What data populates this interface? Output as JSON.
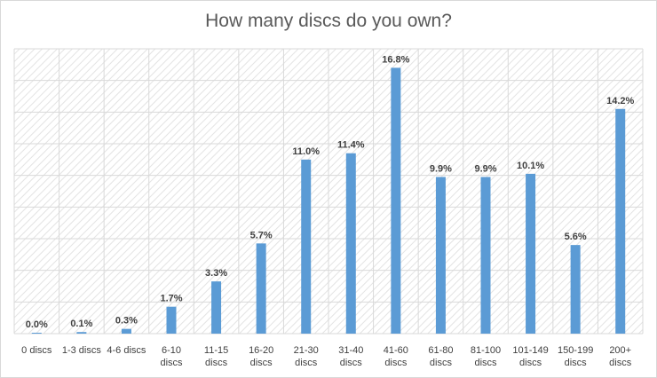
{
  "chart_data": {
    "type": "bar",
    "title": "How many discs do you own?",
    "categories": [
      "0 discs",
      "1-3 discs",
      "4-6 discs",
      "6-10 discs",
      "11-15 discs",
      "16-20 discs",
      "21-30 discs",
      "31-40 discs",
      "41-60 discs",
      "61-80 discs",
      "81-100 discs",
      "101-149 discs",
      "150-199 discs",
      "200+ discs"
    ],
    "category_lines": [
      [
        "0 discs"
      ],
      [
        "1-3 discs"
      ],
      [
        "4-6 discs"
      ],
      [
        "6-10",
        "discs"
      ],
      [
        "11-15",
        "discs"
      ],
      [
        "16-20",
        "discs"
      ],
      [
        "21-30",
        "discs"
      ],
      [
        "31-40",
        "discs"
      ],
      [
        "41-60",
        "discs"
      ],
      [
        "61-80",
        "discs"
      ],
      [
        "81-100",
        "discs"
      ],
      [
        "101-149",
        "discs"
      ],
      [
        "150-199",
        "discs"
      ],
      [
        "200+",
        "discs"
      ]
    ],
    "values": [
      0.0,
      0.1,
      0.3,
      1.7,
      3.3,
      5.7,
      11.0,
      11.4,
      16.8,
      9.9,
      9.9,
      10.1,
      5.6,
      14.2
    ],
    "data_labels": [
      "0.0%",
      "0.1%",
      "0.3%",
      "1.7%",
      "3.3%",
      "5.7%",
      "11.0%",
      "11.4%",
      "16.8%",
      "9.9%",
      "9.9%",
      "10.1%",
      "5.6%",
      "14.2%"
    ],
    "ylim": [
      0,
      18
    ],
    "gridline_step": 2,
    "y_axis_visible": false,
    "grid": true,
    "bar_color": "#5b9bd5",
    "plot_pattern": "diagonal-hatch"
  }
}
